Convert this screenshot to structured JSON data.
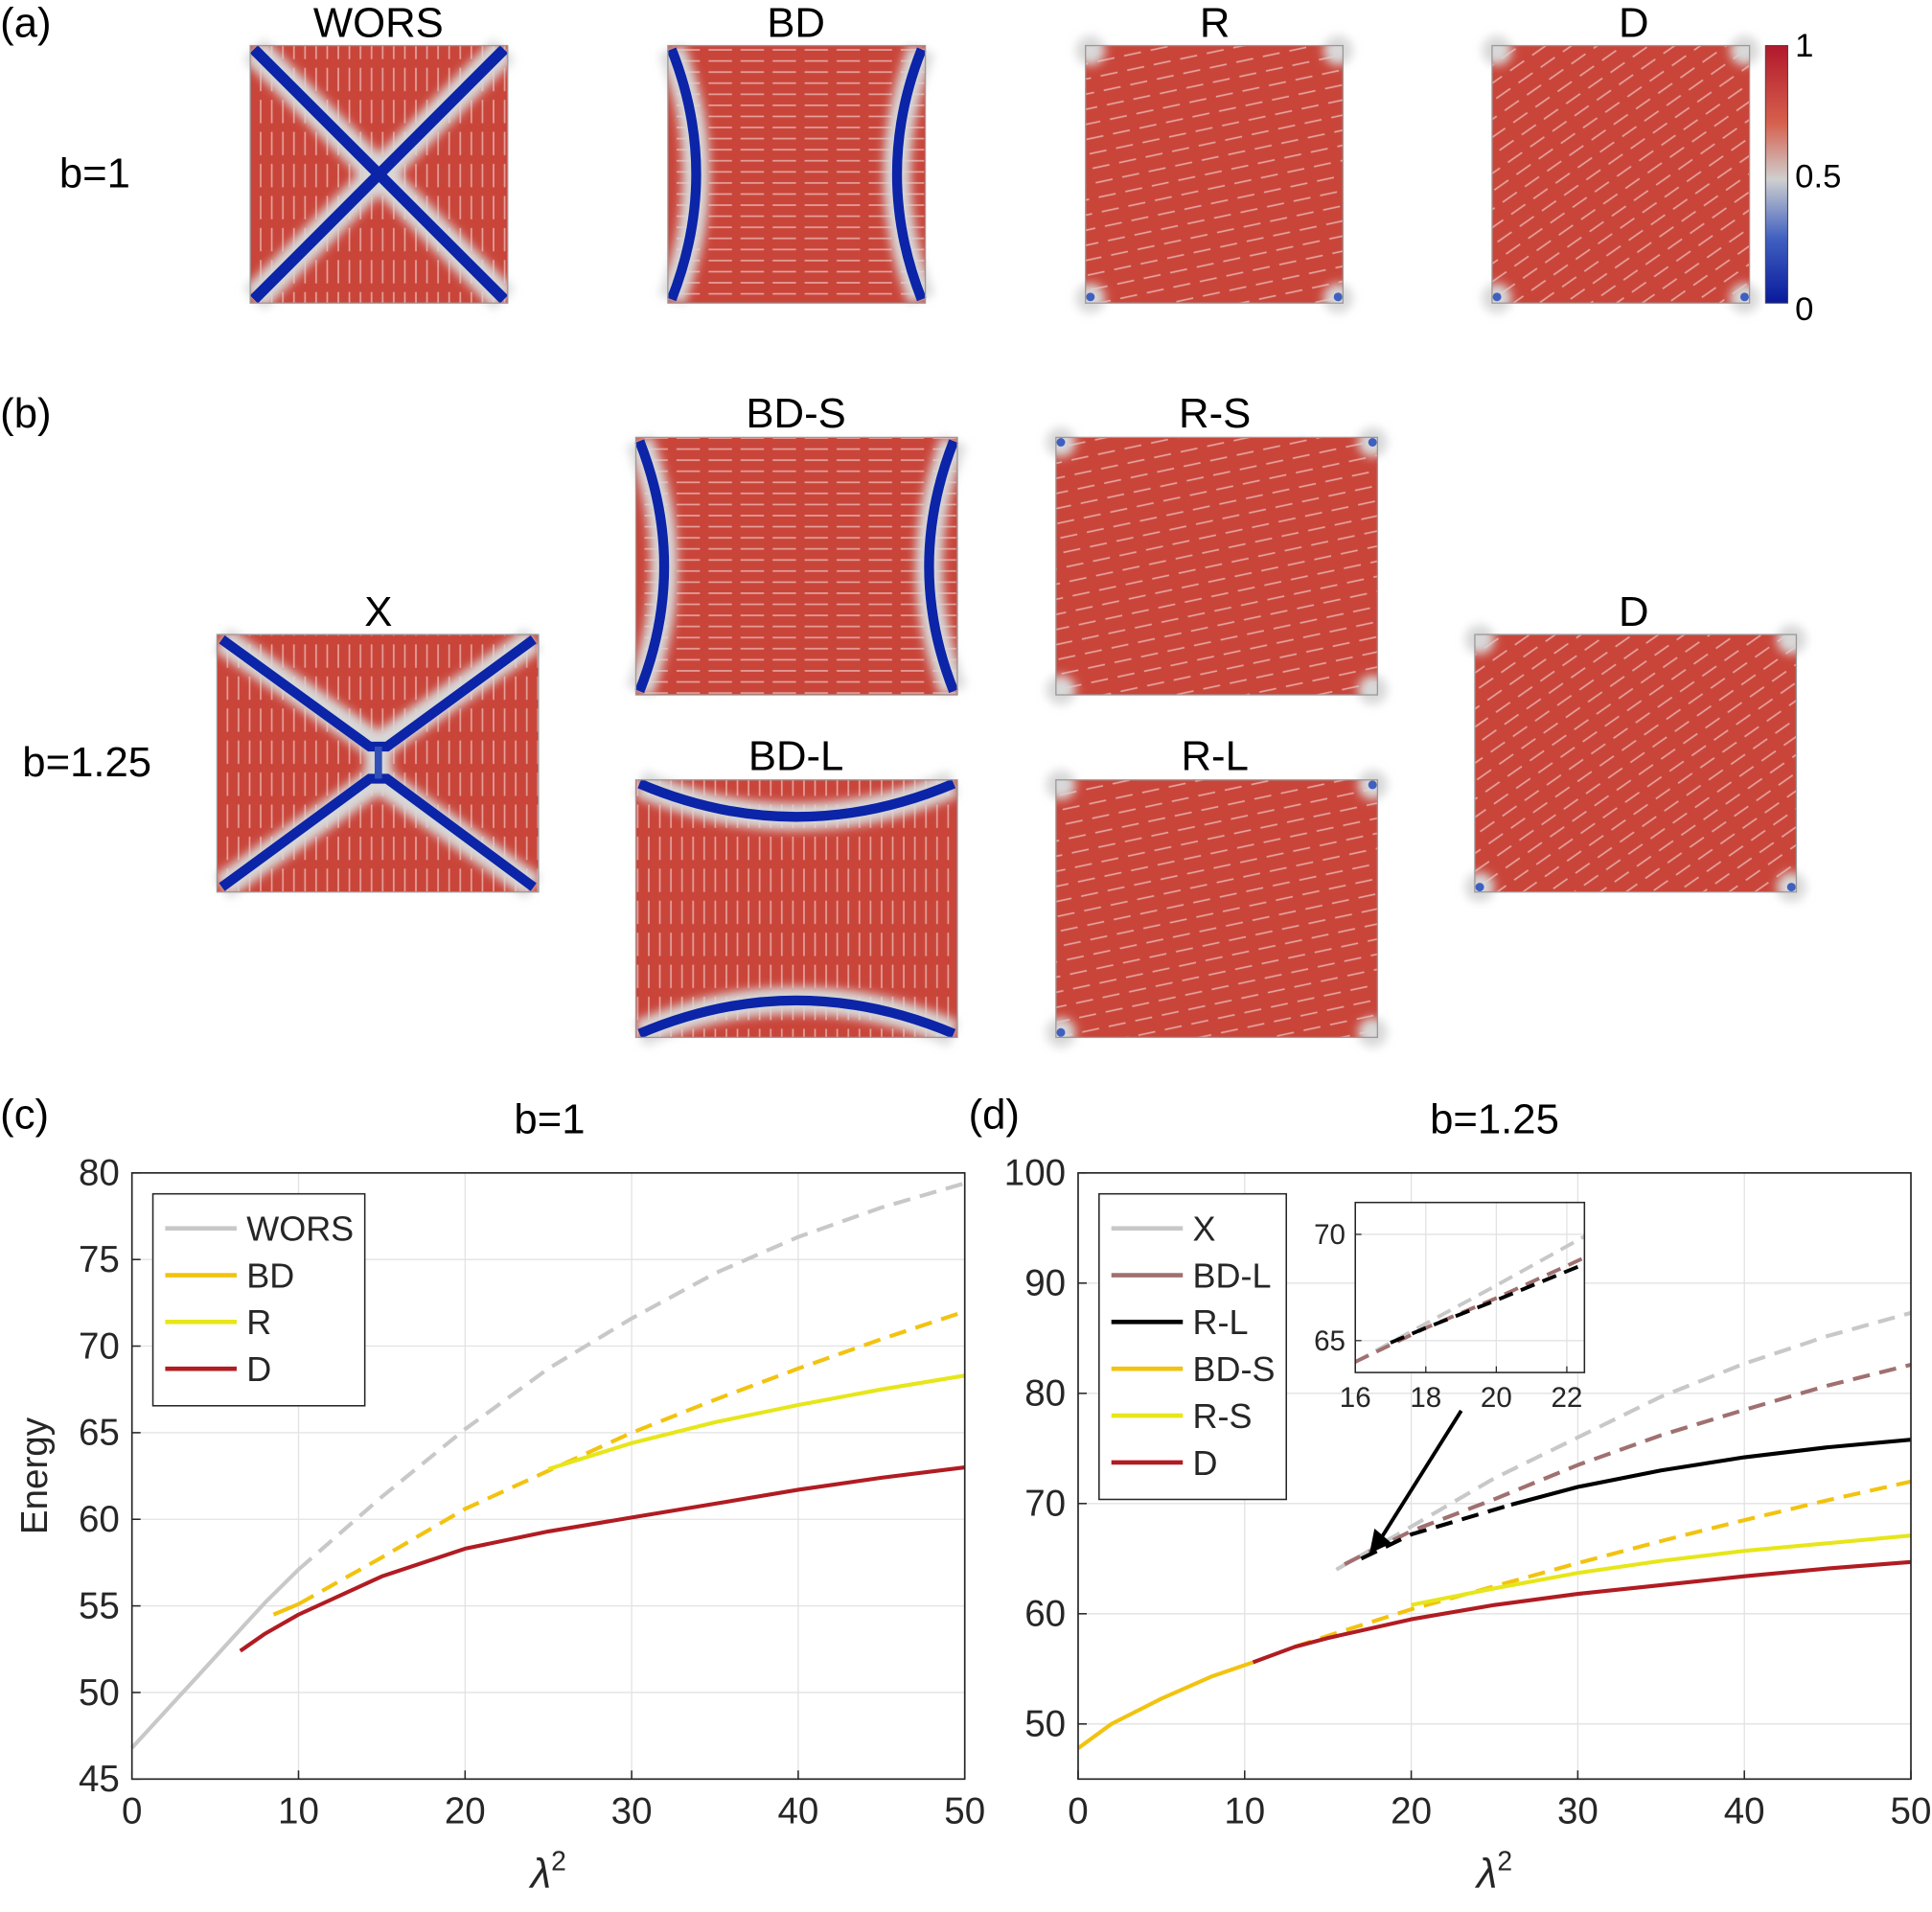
{
  "figure": {
    "panel_a": {
      "label": "(a)",
      "row_label": "b=1",
      "titles": [
        "WORS",
        "BD",
        "R",
        "D"
      ],
      "colorbar_ticks": [
        "1",
        "0.5",
        "0"
      ],
      "colorbar_colors": [
        "#b2182b",
        "#d6604d",
        "#cfcfcf",
        "#4060c0",
        "#08199c"
      ]
    },
    "panel_b": {
      "label": "(b)",
      "row_label": "b=1.25",
      "titles": [
        "X",
        "BD-S",
        "BD-L",
        "R-S",
        "R-L",
        "D"
      ]
    },
    "field_colors": {
      "high": "#c9453a",
      "low": "#0b24a8",
      "director": "#ffffff"
    }
  },
  "chart_data": [
    {
      "panel_label": "(c)",
      "type": "line",
      "title": "b=1",
      "xlabel": "λ",
      "xlabel_superscript": "2",
      "ylabel": "Energy",
      "xlim": [
        0,
        50
      ],
      "ylim": [
        45,
        80
      ],
      "xticks": [
        "0",
        "10",
        "20",
        "30",
        "40",
        "50"
      ],
      "yticks": [
        "45",
        "50",
        "55",
        "60",
        "65",
        "70",
        "75",
        "80"
      ],
      "grid": true,
      "legend_position": "top-left",
      "legend": [
        "WORS",
        "BD",
        "R",
        "D"
      ],
      "series": [
        {
          "name": "WORS",
          "color": "#c8c8c8",
          "segments": [
            {
              "style": "solid",
              "x": [
                0,
                2,
                4,
                6,
                8,
                10
              ],
              "y": [
                46.8,
                48.9,
                51.0,
                53.1,
                55.2,
                57.1
              ]
            },
            {
              "style": "dashed",
              "x": [
                10,
                15,
                20,
                25,
                30,
                35,
                40,
                45,
                50
              ],
              "y": [
                57.1,
                61.3,
                65.2,
                68.7,
                71.6,
                74.2,
                76.3,
                78.0,
                79.4
              ]
            }
          ]
        },
        {
          "name": "BD",
          "color": "#f2c30f",
          "segments": [
            {
              "style": "solid",
              "x": [
                8.5,
                10
              ],
              "y": [
                54.5,
                55.1
              ]
            },
            {
              "style": "dashed",
              "x": [
                10,
                15,
                20,
                25,
                30,
                35,
                40,
                45,
                50
              ],
              "y": [
                55.1,
                57.8,
                60.6,
                62.8,
                65.0,
                66.9,
                68.7,
                70.4,
                72.0
              ]
            }
          ]
        },
        {
          "name": "R",
          "color": "#e6e61a",
          "segments": [
            {
              "style": "solid",
              "x": [
                25,
                30,
                35,
                40,
                45,
                50
              ],
              "y": [
                62.9,
                64.4,
                65.6,
                66.6,
                67.5,
                68.3
              ]
            }
          ]
        },
        {
          "name": "D",
          "color": "#b01c22",
          "segments": [
            {
              "style": "solid",
              "x": [
                6.5,
                8,
                10,
                15,
                20,
                25,
                30,
                35,
                40,
                45,
                50
              ],
              "y": [
                52.4,
                53.4,
                54.5,
                56.7,
                58.3,
                59.3,
                60.1,
                60.9,
                61.7,
                62.4,
                63.0
              ]
            }
          ]
        }
      ]
    },
    {
      "panel_label": "(d)",
      "type": "line",
      "title": "b=1.25",
      "xlabel": "λ",
      "xlabel_superscript": "2",
      "ylabel": "",
      "xlim": [
        0,
        50
      ],
      "ylim": [
        45,
        100
      ],
      "xticks": [
        "0",
        "10",
        "20",
        "30",
        "40",
        "50"
      ],
      "yticks": [
        "50",
        "60",
        "70",
        "80",
        "90",
        "100"
      ],
      "grid": true,
      "legend_position": "top-left",
      "legend": [
        "X",
        "BD-L",
        "R-L",
        "BD-S",
        "R-S",
        "D"
      ],
      "series": [
        {
          "name": "X",
          "color": "#c8c8c8",
          "segments": [
            {
              "style": "solid",
              "x": [
                15.5,
                17
              ],
              "y": [
                64.0,
                65.3
              ]
            },
            {
              "style": "dashed",
              "x": [
                17,
                20,
                25,
                30,
                35,
                40,
                45,
                50
              ],
              "y": [
                65.3,
                67.9,
                72.3,
                76.0,
                79.7,
                82.7,
                85.2,
                87.3
              ]
            }
          ]
        },
        {
          "name": "BD-L",
          "color": "#a07070",
          "segments": [
            {
              "style": "dashed",
              "x": [
                16,
                20,
                25,
                30,
                35,
                40,
                45,
                50
              ],
              "y": [
                64.5,
                67.5,
                70.4,
                73.5,
                76.2,
                78.5,
                80.7,
                82.6
              ]
            }
          ]
        },
        {
          "name": "R-L",
          "color": "#000000",
          "segments": [
            {
              "style": "dashed",
              "x": [
                17,
                20,
                26
              ],
              "y": [
                65.0,
                67.2,
                69.9
              ]
            },
            {
              "style": "solid",
              "x": [
                26,
                30,
                35,
                40,
                45,
                50
              ],
              "y": [
                69.9,
                71.5,
                73.0,
                74.2,
                75.1,
                75.8
              ]
            }
          ]
        },
        {
          "name": "BD-S",
          "color": "#f2c30f",
          "segments": [
            {
              "style": "solid",
              "x": [
                0,
                2,
                5,
                8,
                10.5
              ],
              "y": [
                47.8,
                50.0,
                52.3,
                54.3,
                55.6
              ]
            },
            {
              "style": "dashed",
              "x": [
                13,
                15,
                20,
                25,
                30,
                35,
                40,
                45,
                50
              ],
              "y": [
                57.0,
                58.0,
                60.4,
                62.5,
                64.6,
                66.6,
                68.5,
                70.3,
                72.0
              ]
            }
          ]
        },
        {
          "name": "R-S",
          "color": "#e6e61a",
          "segments": [
            {
              "style": "solid",
              "x": [
                20,
                25,
                30,
                35,
                40,
                45,
                50
              ],
              "y": [
                60.8,
                62.3,
                63.7,
                64.8,
                65.7,
                66.4,
                67.1
              ]
            }
          ]
        },
        {
          "name": "D",
          "color": "#b01c22",
          "segments": [
            {
              "style": "solid",
              "x": [
                10.5,
                13,
                15,
                20,
                25,
                30,
                35,
                40,
                45,
                50
              ],
              "y": [
                55.6,
                57.0,
                57.8,
                59.5,
                60.8,
                61.8,
                62.6,
                63.4,
                64.1,
                64.7
              ]
            }
          ]
        }
      ],
      "inset": {
        "xlim": [
          16,
          22.5
        ],
        "ylim": [
          63.5,
          71.5
        ],
        "xticks": [
          "16",
          "18",
          "20",
          "22"
        ],
        "yticks": [
          "65",
          "70"
        ],
        "series": [
          {
            "name": "X",
            "color": "#c8c8c8",
            "style": "dashed",
            "x": [
              16,
              18,
              20,
              22.5
            ],
            "y": [
              64.0,
              65.8,
              67.6,
              69.9
            ]
          },
          {
            "name": "BD-L",
            "color": "#a07070",
            "style": "dashed",
            "x": [
              16,
              18,
              20,
              22.5
            ],
            "y": [
              64.0,
              65.6,
              67.0,
              68.9
            ]
          },
          {
            "name": "R-L",
            "color": "#000000",
            "style": "dashed",
            "x": [
              17,
              18,
              20,
              22.5
            ],
            "y": [
              64.9,
              65.6,
              66.9,
              68.6
            ]
          }
        ]
      }
    }
  ]
}
